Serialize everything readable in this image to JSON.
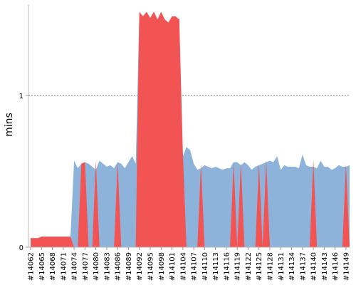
{
  "chart_data": {
    "type": "area",
    "title": "",
    "xlabel": "",
    "ylabel": "mins",
    "ylim": [
      0,
      1.6
    ],
    "yticks": [
      0,
      1
    ],
    "gridline_at": 1,
    "x": [
      "#14062",
      "#14063",
      "#14064",
      "#14065",
      "#14066",
      "#14067",
      "#14068",
      "#14069",
      "#14070",
      "#14071",
      "#14072",
      "#14073",
      "#14074",
      "#14075",
      "#14076",
      "#14077",
      "#14078",
      "#14079",
      "#14080",
      "#14081",
      "#14082",
      "#14083",
      "#14084",
      "#14085",
      "#14086",
      "#14087",
      "#14088",
      "#14089",
      "#14090",
      "#14091",
      "#14092",
      "#14093",
      "#14094",
      "#14095",
      "#14096",
      "#14097",
      "#14098",
      "#14099",
      "#14100",
      "#14101",
      "#14102",
      "#14103",
      "#14104",
      "#14105",
      "#14106",
      "#14107",
      "#14108",
      "#14109",
      "#14110",
      "#14111",
      "#14112",
      "#14113",
      "#14114",
      "#14115",
      "#14116",
      "#14117",
      "#14118",
      "#14119",
      "#14120",
      "#14121",
      "#14122",
      "#14123",
      "#14124",
      "#14125",
      "#14126",
      "#14127",
      "#14128",
      "#14129",
      "#14130",
      "#14131",
      "#14132",
      "#14133",
      "#14134",
      "#14135",
      "#14136",
      "#14137",
      "#14138",
      "#14139",
      "#14140",
      "#14141",
      "#14142",
      "#14143",
      "#14144",
      "#14145",
      "#14146",
      "#14147",
      "#14148",
      "#14149",
      "#14150"
    ],
    "xtick_labels": [
      "#14062",
      "#14065",
      "#14068",
      "#14071",
      "#14074",
      "#14077",
      "#14080",
      "#14083",
      "#14086",
      "#14089",
      "#14092",
      "#14095",
      "#14098",
      "#14101",
      "#14104",
      "#14107",
      "#14110",
      "#14113",
      "#14116",
      "#14119",
      "#14122",
      "#14125",
      "#14128",
      "#14131",
      "#14134",
      "#14137",
      "#14140",
      "#14143",
      "#14146",
      "#14149"
    ],
    "series": [
      {
        "color": "#8eb3da",
        "values": [
          0.06,
          0.06,
          0.06,
          0.07,
          0.07,
          0.07,
          0.07,
          0.07,
          0.07,
          0.07,
          0.07,
          0.07,
          0.57,
          0.52,
          0.55,
          0.56,
          0.55,
          0.53,
          0.51,
          0.57,
          0.55,
          0.53,
          0.54,
          0.52,
          0.56,
          0.55,
          0.52,
          0.56,
          0.6,
          0.55,
          1.55,
          1.52,
          1.55,
          1.51,
          1.55,
          1.5,
          1.55,
          1.5,
          1.48,
          1.52,
          1.52,
          1.5,
          0.6,
          0.66,
          0.64,
          0.55,
          0.51,
          0.52,
          0.54,
          0.53,
          0.52,
          0.53,
          0.52,
          0.51,
          0.52,
          0.52,
          0.56,
          0.56,
          0.54,
          0.56,
          0.54,
          0.51,
          0.53,
          0.54,
          0.55,
          0.56,
          0.57,
          0.56,
          0.6,
          0.51,
          0.54,
          0.53,
          0.53,
          0.53,
          0.52,
          0.61,
          0.54,
          0.53,
          0.53,
          0.52,
          0.57,
          0.53,
          0.53,
          0.51,
          0.52,
          0.54,
          0.53,
          0.53,
          0.54
        ]
      },
      {
        "color": "#f25353",
        "values": [
          0.06,
          0.06,
          0.06,
          0.07,
          0.07,
          0.07,
          0.07,
          0.07,
          0.07,
          0.07,
          0.07,
          0.07,
          0,
          0,
          0.55,
          0.56,
          0,
          0,
          0.57,
          0,
          0,
          0,
          0,
          0,
          0.56,
          0,
          0,
          0,
          0,
          0,
          1.55,
          1.52,
          1.55,
          1.51,
          1.55,
          1.5,
          1.55,
          1.5,
          1.48,
          1.52,
          1.52,
          1.5,
          0.62,
          0,
          0,
          0,
          0,
          0.55,
          0,
          0,
          0,
          0,
          0,
          0,
          0,
          0,
          0.56,
          0,
          0.56,
          0,
          0,
          0,
          0,
          0.55,
          0,
          0.57,
          0,
          0,
          0,
          0,
          0,
          0,
          0,
          0,
          0,
          0,
          0,
          0,
          0.58,
          0,
          0,
          0,
          0,
          0,
          0,
          0,
          0,
          0.55,
          0
        ]
      }
    ]
  }
}
